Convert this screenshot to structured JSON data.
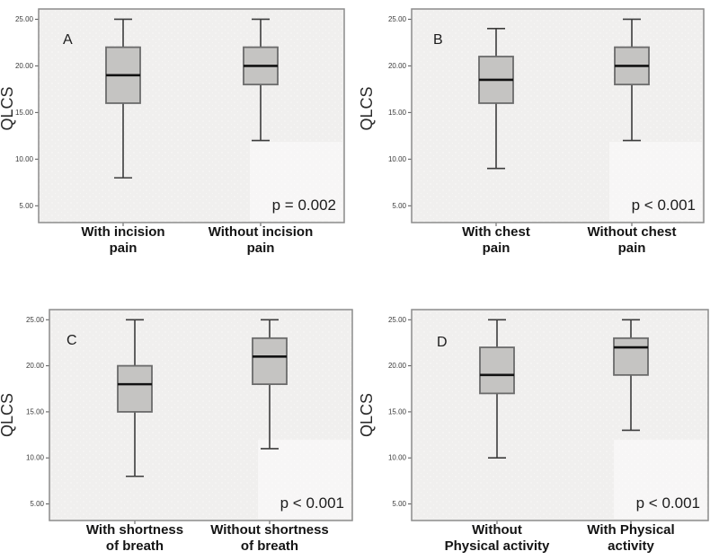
{
  "figure": {
    "background": "#ffffff",
    "plot_bg": "#f0efee",
    "box_fill": "#c5c4c2",
    "box_border": "#6b6b6b",
    "median_color": "#121212",
    "whisker_color": "#3c3c3c",
    "frame_color": "#8c8c8c",
    "label_color": "#141414",
    "tick_label_color": "#3a3a3a"
  },
  "chart_data": [
    {
      "type": "boxplot",
      "panel_label": "A",
      "ylabel": "QLCS",
      "ylim": [
        3.2,
        26.1
      ],
      "yticks": [
        5,
        10,
        15,
        20,
        25
      ],
      "ytick_labels": [
        "5.00",
        "10.00",
        "15.00",
        "20.00",
        "25.00"
      ],
      "p_label": "p = 0.002",
      "grid": false,
      "categories": [
        [
          "With incision",
          "pain"
        ],
        [
          "Without incision",
          "pain"
        ]
      ],
      "series": [
        {
          "name": "With incision pain",
          "min": 8,
          "q1": 16,
          "median": 19,
          "q3": 22,
          "max": 25
        },
        {
          "name": "Without incision pain",
          "min": 12,
          "q1": 18,
          "median": 20,
          "q3": 22,
          "max": 25
        }
      ]
    },
    {
      "type": "boxplot",
      "panel_label": "B",
      "ylabel": "QLCS",
      "ylim": [
        3.2,
        26.1
      ],
      "yticks": [
        5,
        10,
        15,
        20,
        25
      ],
      "ytick_labels": [
        "5.00",
        "10.00",
        "15.00",
        "20.00",
        "25.00"
      ],
      "p_label": "p < 0.001",
      "grid": false,
      "categories": [
        [
          "With chest",
          "pain"
        ],
        [
          "Without chest",
          "pain"
        ]
      ],
      "series": [
        {
          "name": "With chest pain",
          "min": 9,
          "q1": 16,
          "median": 18.5,
          "q3": 21,
          "max": 24
        },
        {
          "name": "Without chest pain",
          "min": 12,
          "q1": 18,
          "median": 20,
          "q3": 22,
          "max": 25
        }
      ]
    },
    {
      "type": "boxplot",
      "panel_label": "C",
      "ylabel": "QLCS",
      "ylim": [
        3.2,
        26.1
      ],
      "yticks": [
        5,
        10,
        15,
        20,
        25
      ],
      "ytick_labels": [
        "5.00",
        "10.00",
        "15.00",
        "20.00",
        "25.00"
      ],
      "p_label": "p < 0.001",
      "grid": false,
      "categories": [
        [
          "With shortness",
          "of breath"
        ],
        [
          "Without shortness",
          "of breath"
        ]
      ],
      "series": [
        {
          "name": "With shortness of breath",
          "min": 8,
          "q1": 15,
          "median": 18,
          "q3": 20,
          "max": 25
        },
        {
          "name": "Without shortness of breath",
          "min": 11,
          "q1": 18,
          "median": 21,
          "q3": 23,
          "max": 25
        }
      ]
    },
    {
      "type": "boxplot",
      "panel_label": "D",
      "ylabel": "QLCS",
      "ylim": [
        3.2,
        26.1
      ],
      "yticks": [
        5,
        10,
        15,
        20,
        25
      ],
      "ytick_labels": [
        "5.00",
        "10.00",
        "15.00",
        "20.00",
        "25.00"
      ],
      "p_label": "p < 0.001",
      "grid": false,
      "categories": [
        [
          "Without",
          "Physical activity"
        ],
        [
          "With Physical",
          "activity"
        ]
      ],
      "series": [
        {
          "name": "Without Physical activity",
          "min": 10,
          "q1": 17,
          "median": 19,
          "q3": 22,
          "max": 25
        },
        {
          "name": "With Physical activity",
          "min": 13,
          "q1": 19,
          "median": 22,
          "q3": 23,
          "max": 25
        }
      ]
    }
  ]
}
